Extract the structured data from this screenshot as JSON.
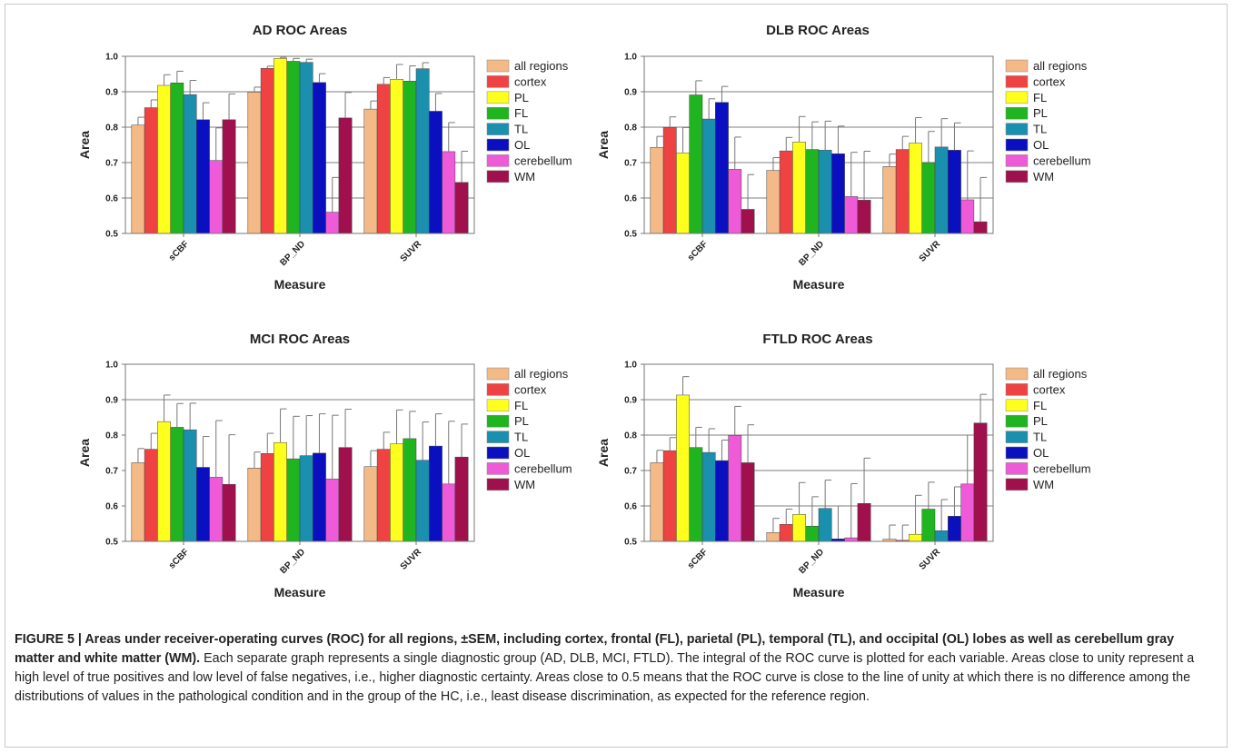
{
  "chart_data": [
    {
      "type": "bar",
      "title": "AD ROC Areas",
      "xlabel": "Measure",
      "ylabel": "Area",
      "ylim": [
        0.5,
        1.0
      ],
      "yticks": [
        "0.5",
        "0.6",
        "0.7",
        "0.8",
        "0.9",
        "1.0"
      ],
      "gridlines": [
        0.6,
        0.7,
        0.8,
        0.9
      ],
      "categories": [
        "sCBF",
        "BP_ND",
        "SUVR"
      ],
      "legend_position": "right",
      "series": [
        {
          "name": "all regions",
          "color": "#f3b987",
          "values": [
            0.806,
            0.899,
            0.851
          ],
          "err": [
            0.022,
            0.014,
            0.023
          ]
        },
        {
          "name": "cortex",
          "color": "#ef4343",
          "values": [
            0.855,
            0.966,
            0.921
          ],
          "err": [
            0.022,
            0.006,
            0.019
          ]
        },
        {
          "name": "PL",
          "color": "#ffff1e",
          "values": [
            0.918,
            0.994,
            0.935
          ],
          "err": [
            0.03,
            0.003,
            0.042
          ]
        },
        {
          "name": "FL",
          "color": "#20b420",
          "values": [
            0.925,
            0.986,
            0.93
          ],
          "err": [
            0.033,
            0.008,
            0.043
          ]
        },
        {
          "name": "TL",
          "color": "#1a8fae",
          "values": [
            0.892,
            0.983,
            0.965
          ],
          "err": [
            0.04,
            0.009,
            0.017
          ]
        },
        {
          "name": "OL",
          "color": "#0a10c0",
          "values": [
            0.821,
            0.926,
            0.845
          ],
          "err": [
            0.048,
            0.025,
            0.05
          ]
        },
        {
          "name": "cerebellum",
          "color": "#ee5ad8",
          "values": [
            0.706,
            0.56,
            0.731
          ],
          "err": [
            0.092,
            0.098,
            0.082
          ]
        },
        {
          "name": "WM",
          "color": "#a0104c",
          "values": [
            0.821,
            0.826,
            0.644
          ],
          "err": [
            0.073,
            0.072,
            0.088
          ]
        }
      ]
    },
    {
      "type": "bar",
      "title": "DLB ROC Areas",
      "xlabel": "Measure",
      "ylabel": "Area",
      "ylim": [
        0.5,
        1.0
      ],
      "yticks": [
        "0.5",
        "0.6",
        "0.7",
        "0.8",
        "0.9",
        "1.0"
      ],
      "gridlines": [
        0.6,
        0.7,
        0.8,
        0.9
      ],
      "categories": [
        "sCBF",
        "BP_ND",
        "SUVR"
      ],
      "legend_position": "right",
      "series": [
        {
          "name": "all regions",
          "color": "#f3b987",
          "values": [
            0.743,
            0.678,
            0.689
          ],
          "err": [
            0.031,
            0.036,
            0.035
          ]
        },
        {
          "name": "cortex",
          "color": "#ef4343",
          "values": [
            0.799,
            0.733,
            0.737
          ],
          "err": [
            0.03,
            0.038,
            0.037
          ]
        },
        {
          "name": "FL",
          "color": "#ffff1e",
          "values": [
            0.727,
            0.758,
            0.755
          ],
          "err": [
            0.072,
            0.072,
            0.072
          ]
        },
        {
          "name": "PL",
          "color": "#20b420",
          "values": [
            0.891,
            0.737,
            0.7
          ],
          "err": [
            0.04,
            0.078,
            0.088
          ]
        },
        {
          "name": "TL",
          "color": "#1a8fae",
          "values": [
            0.823,
            0.735,
            0.744
          ],
          "err": [
            0.057,
            0.082,
            0.08
          ]
        },
        {
          "name": "OL",
          "color": "#0a10c0",
          "values": [
            0.87,
            0.725,
            0.735
          ],
          "err": [
            0.045,
            0.078,
            0.077
          ]
        },
        {
          "name": "cerebellum",
          "color": "#ee5ad8",
          "values": [
            0.681,
            0.604,
            0.595
          ],
          "err": [
            0.091,
            0.125,
            0.138
          ]
        },
        {
          "name": "WM",
          "color": "#a0104c",
          "values": [
            0.568,
            0.594,
            0.533
          ],
          "err": [
            0.098,
            0.138,
            0.125
          ]
        }
      ]
    },
    {
      "type": "bar",
      "title": "MCI ROC Areas",
      "xlabel": "Measure",
      "ylabel": "Area",
      "ylim": [
        0.5,
        1.0
      ],
      "yticks": [
        "0.5",
        "0.6",
        "0.7",
        "0.8",
        "0.9",
        "1.0"
      ],
      "gridlines": [
        0.9
      ],
      "categories": [
        "sCBF",
        "BP_ND",
        "SUVR"
      ],
      "legend_position": "right",
      "series": [
        {
          "name": "all regions",
          "color": "#f3b987",
          "values": [
            0.722,
            0.707,
            0.711
          ],
          "err": [
            0.04,
            0.045,
            0.045
          ]
        },
        {
          "name": "cortex",
          "color": "#ef4343",
          "values": [
            0.76,
            0.748,
            0.76
          ],
          "err": [
            0.045,
            0.057,
            0.048
          ]
        },
        {
          "name": "FL",
          "color": "#ffff1e",
          "values": [
            0.838,
            0.779,
            0.775
          ],
          "err": [
            0.075,
            0.095,
            0.096
          ]
        },
        {
          "name": "PL",
          "color": "#20b420",
          "values": [
            0.822,
            0.733,
            0.79
          ],
          "err": [
            0.067,
            0.12,
            0.077
          ]
        },
        {
          "name": "TL",
          "color": "#1a8fae",
          "values": [
            0.815,
            0.742,
            0.729
          ],
          "err": [
            0.075,
            0.113,
            0.108
          ]
        },
        {
          "name": "OL",
          "color": "#0a10c0",
          "values": [
            0.709,
            0.749,
            0.769
          ],
          "err": [
            0.087,
            0.111,
            0.091
          ]
        },
        {
          "name": "cerebellum",
          "color": "#ee5ad8",
          "values": [
            0.681,
            0.676,
            0.662
          ],
          "err": [
            0.16,
            0.18,
            0.177
          ]
        },
        {
          "name": "WM",
          "color": "#a0104c",
          "values": [
            0.661,
            0.765,
            0.738
          ],
          "err": [
            0.14,
            0.108,
            0.093
          ]
        }
      ]
    },
    {
      "type": "bar",
      "title": "FTLD ROC Areas",
      "xlabel": "Measure",
      "ylabel": "Area",
      "ylim": [
        0.5,
        1.0
      ],
      "yticks": [
        "0.5",
        "0.6",
        "0.7",
        "0.8",
        "0.9",
        "1.0"
      ],
      "gridlines": [
        0.6,
        0.7,
        0.8,
        0.9
      ],
      "categories": [
        "sCBF",
        "BP_ND",
        "SUVR"
      ],
      "legend_position": "right",
      "series": [
        {
          "name": "all regions",
          "color": "#f3b987",
          "values": [
            0.722,
            0.525,
            0.506
          ],
          "err": [
            0.035,
            0.04,
            0.04
          ]
        },
        {
          "name": "cortex",
          "color": "#ef4343",
          "values": [
            0.756,
            0.548,
            0.503
          ],
          "err": [
            0.037,
            0.043,
            0.043
          ]
        },
        {
          "name": "FL",
          "color": "#ffff1e",
          "values": [
            0.913,
            0.576,
            0.52
          ],
          "err": [
            0.052,
            0.09,
            0.11
          ]
        },
        {
          "name": "PL",
          "color": "#20b420",
          "values": [
            0.765,
            0.543,
            0.591
          ],
          "err": [
            0.057,
            0.083,
            0.076
          ]
        },
        {
          "name": "TL",
          "color": "#1a8fae",
          "values": [
            0.751,
            0.593,
            0.53
          ],
          "err": [
            0.067,
            0.08,
            0.088
          ]
        },
        {
          "name": "OL",
          "color": "#0a10c0",
          "values": [
            0.728,
            0.507,
            0.571
          ],
          "err": [
            0.058,
            0.093,
            0.083
          ]
        },
        {
          "name": "cerebellum",
          "color": "#ee5ad8",
          "values": [
            0.799,
            0.51,
            0.662
          ],
          "err": [
            0.082,
            0.153,
            0.138
          ]
        },
        {
          "name": "WM",
          "color": "#a0104c",
          "values": [
            0.722,
            0.607,
            0.834
          ],
          "err": [
            0.107,
            0.128,
            0.081
          ]
        }
      ]
    }
  ],
  "caption": {
    "bold": "FIGURE 5 | Areas under receiver-operating curves (ROC) for all regions, ±SEM, including cortex, frontal (FL), parietal (PL), temporal (TL), and occipital (OL) lobes as well as cerebellum gray matter and white matter (WM).",
    "body": " Each separate graph represents a single diagnostic group (AD, DLB, MCI, FTLD). The integral of the ROC curve is plotted for each variable. Areas close to unity represent a high level of true positives and low level of false negatives, i.e., higher diagnostic certainty. Areas close to 0.5 means that the ROC curve is close to the line of unity at which there is no difference among the distributions of values in the pathological condition and in the group of the HC, i.e., least disease discrimination, as expected for the reference region."
  }
}
